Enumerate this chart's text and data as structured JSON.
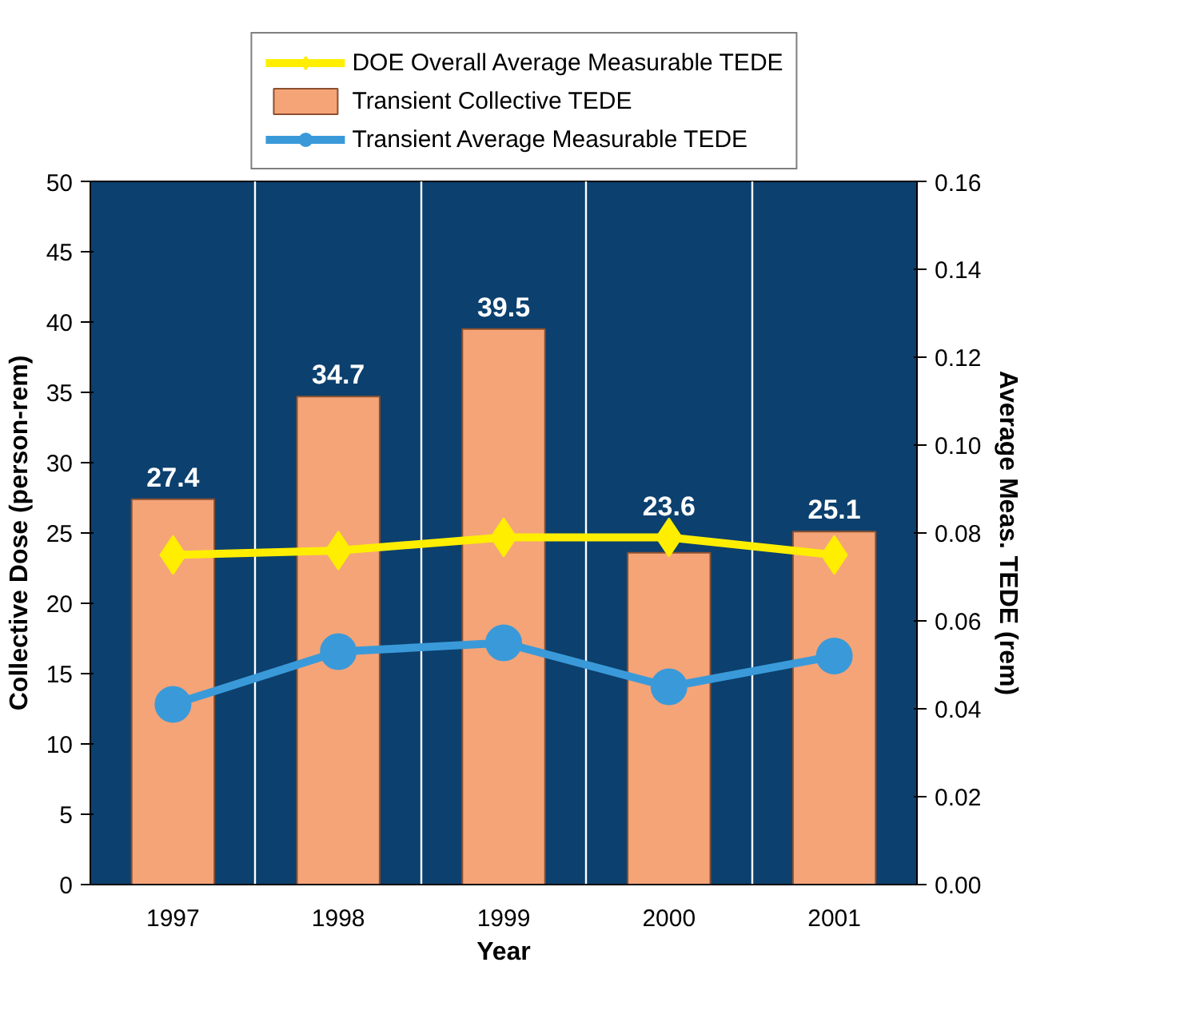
{
  "chart_data": {
    "type": "bar",
    "categories": [
      "1997",
      "1998",
      "1999",
      "2000",
      "2001"
    ],
    "xlabel": "Year",
    "ylabel": "Collective Dose (person-rem)",
    "y2label": "Average Meas. TEDE (rem)",
    "series": [
      {
        "name": "DOE Overall Average Measurable TEDE",
        "type": "line",
        "axis": "y2",
        "color": "#ffee00",
        "marker": "diamond",
        "values": [
          0.075,
          0.076,
          0.079,
          0.079,
          0.075
        ]
      },
      {
        "name": "Transient Collective TEDE",
        "color": "#f5a478",
        "values": [
          27.4,
          34.7,
          39.5,
          23.6,
          25.1
        ],
        "value_labels": [
          "27.4",
          "34.7",
          "39.5",
          "23.6",
          "25.1"
        ]
      },
      {
        "name": "Transient Average Measurable TEDE",
        "type": "line",
        "axis": "y2",
        "color": "#3a9ad9",
        "marker": "circle",
        "values": [
          0.041,
          0.053,
          0.055,
          0.045,
          0.052
        ]
      }
    ],
    "ylim": [
      0,
      50
    ],
    "yticks": [
      0,
      5,
      10,
      15,
      20,
      25,
      30,
      35,
      40,
      45,
      50
    ],
    "y2lim": [
      0,
      0.16
    ],
    "y2ticks": [
      {
        "value": 0,
        "label": "0.00"
      },
      {
        "value": 0.02,
        "label": "0.02"
      },
      {
        "value": 0.04,
        "label": "0.04"
      },
      {
        "value": 0.06,
        "label": "0.06"
      },
      {
        "value": 0.08,
        "label": "0.08"
      },
      {
        "value": 0.1,
        "label": "0.10"
      },
      {
        "value": 0.12,
        "label": "0.12"
      },
      {
        "value": 0.14,
        "label": "0.14"
      },
      {
        "value": 0.16,
        "label": "0.16"
      }
    ],
    "grid": "x",
    "legend": "top"
  }
}
